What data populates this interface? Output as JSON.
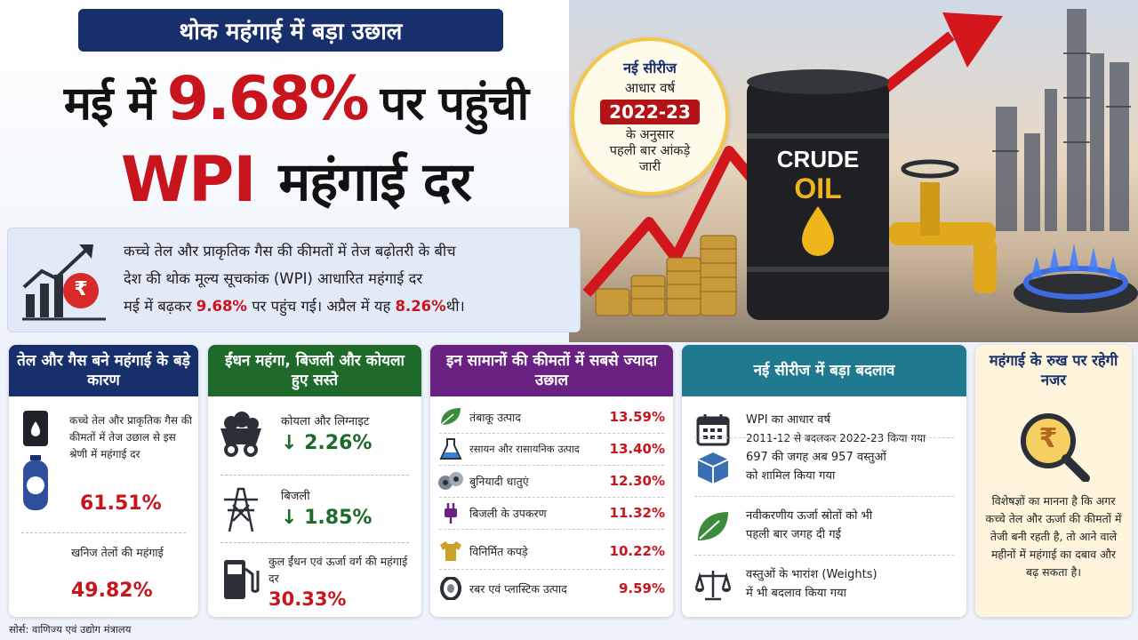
{
  "header": {
    "tag": "थोक महंगाई में बड़ा उछाल",
    "headline_pre": "मई में",
    "headline_pct": "9.68%",
    "headline_post": "पर पहुंची",
    "headline_wpi": "WPI",
    "headline_rest": "महंगाई दर"
  },
  "badge": {
    "line1": "नई सीरीज",
    "line2": "आधार वर्ष",
    "year": "2022-23",
    "line4": "के अनुसार",
    "line5": "पहली बार आंकड़े",
    "line6": "जारी"
  },
  "scene": {
    "barrel_line1": "CRUDE",
    "barrel_line2": "OIL"
  },
  "intro": {
    "line1": "कच्चे तेल और प्राकृतिक गैस की कीमतों में तेज बढ़ोतरी के बीच",
    "line2": "देश की थोक मूल्य सूचकांक (WPI) आधारित महंगाई दर",
    "line3_pre": "मई में बढ़कर",
    "line3_may": "9.68%",
    "line3_mid": "पर पहुंच गई। अप्रैल में यह",
    "line3_apr": "8.26%",
    "line3_post": "थी।",
    "rupee_symbol": "₹"
  },
  "panel1": {
    "title": "तेल और गैस बने महंगाई के बड़े कारण",
    "row1_text": "कच्चे तेल और प्राकृतिक गैस की कीमतों में तेज उछाल से इस श्रेणी में महंगाई दर",
    "row1_value": "61.51%",
    "row2_text": "खनिज तेलों की महंगाई",
    "row2_value": "49.82%"
  },
  "panel2": {
    "title": "ईंधन महंगा, बिजली और कोयला हुए सस्ते",
    "items": [
      {
        "label": "कोयला और लिग्नाइट",
        "value": "↓ 2.26%"
      },
      {
        "label": "बिजली",
        "value": "↓ 1.85%"
      }
    ],
    "last_label": "कुल ईंधन एवं ऊर्जा वर्ग की महंगाई दर",
    "last_value": "30.33%"
  },
  "panel3": {
    "title": "इन सामानों की कीमतों में सबसे ज्यादा उछाल",
    "rows": [
      {
        "label": "तंबाकू उत्पाद",
        "value": "13.59%"
      },
      {
        "label": "रसायन और रासायनिक उत्पाद",
        "value": "13.40%"
      },
      {
        "label": "बुनियादी धातुएं",
        "value": "12.30%"
      },
      {
        "label": "बिजली के उपकरण",
        "value": "11.32%"
      },
      {
        "label": "विनिर्मित कपड़े",
        "value": "10.22%"
      },
      {
        "label": "रबर एवं प्लास्टिक उत्पाद",
        "value": "9.59%"
      }
    ]
  },
  "panel4": {
    "title": "नई सीरीज में बड़ा बदलाव",
    "rows": [
      {
        "line1": "WPI का आधार वर्ष",
        "line2": "2011-12 से बदलकर 2022-23 किया गया"
      },
      {
        "line1": "697 की जगह अब 957 वस्तुओं",
        "line2": "को शामिल किया गया"
      },
      {
        "line1": "नवीकरणीय ऊर्जा स्रोतों को भी",
        "line2": "पहली बार जगह दी गई"
      },
      {
        "line1": "वस्तुओं के भारांश (Weights)",
        "line2": "में भी बदलाव किया गया"
      }
    ]
  },
  "panel5": {
    "title": "महंगाई के रुख पर रहेगी नजर",
    "rupee_symbol": "₹",
    "text": "विशेषज्ञों का मानना है कि अगर कच्चे तेल और ऊर्जा की कीमतों में तेजी बनी रहती है, तो आने वाले महीनों में महंगाई का दबाव और बढ़ सकता है।"
  },
  "footer": {
    "source": "सोर्स: वाणिज्य एवं उद्योग मंत्रालय"
  },
  "colors": {
    "navy": "#17306b",
    "red": "#c8141c",
    "green": "#1f6a2b",
    "purple": "#6a2282",
    "teal": "#1f7a8f",
    "gold": "#f3c64a"
  }
}
